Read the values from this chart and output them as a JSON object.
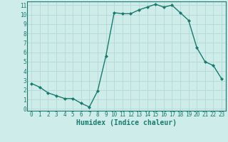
{
  "x": [
    0,
    1,
    2,
    3,
    4,
    5,
    6,
    7,
    8,
    9,
    10,
    11,
    12,
    13,
    14,
    15,
    16,
    17,
    18,
    19,
    20,
    21,
    22,
    23
  ],
  "y": [
    2.7,
    2.3,
    1.7,
    1.4,
    1.1,
    1.1,
    0.6,
    0.2,
    1.9,
    5.6,
    10.2,
    10.1,
    10.1,
    10.5,
    10.8,
    11.1,
    10.8,
    11.0,
    10.2,
    9.4,
    6.5,
    5.0,
    4.6,
    3.2
  ],
  "line_color": "#1a7a6e",
  "marker": "D",
  "marker_size": 2.0,
  "bg_color": "#ceecea",
  "grid_color": "#b8dbd8",
  "xlabel": "Humidex (Indice chaleur)",
  "ylim_min": -0.2,
  "ylim_max": 11.4,
  "xlim_min": -0.5,
  "xlim_max": 23.5,
  "yticks": [
    0,
    1,
    2,
    3,
    4,
    5,
    6,
    7,
    8,
    9,
    10,
    11
  ],
  "xticks": [
    0,
    1,
    2,
    3,
    4,
    5,
    6,
    7,
    8,
    9,
    10,
    11,
    12,
    13,
    14,
    15,
    16,
    17,
    18,
    19,
    20,
    21,
    22,
    23
  ],
  "tick_fontsize": 5.5,
  "xlabel_fontsize": 7.0,
  "linewidth": 1.0
}
